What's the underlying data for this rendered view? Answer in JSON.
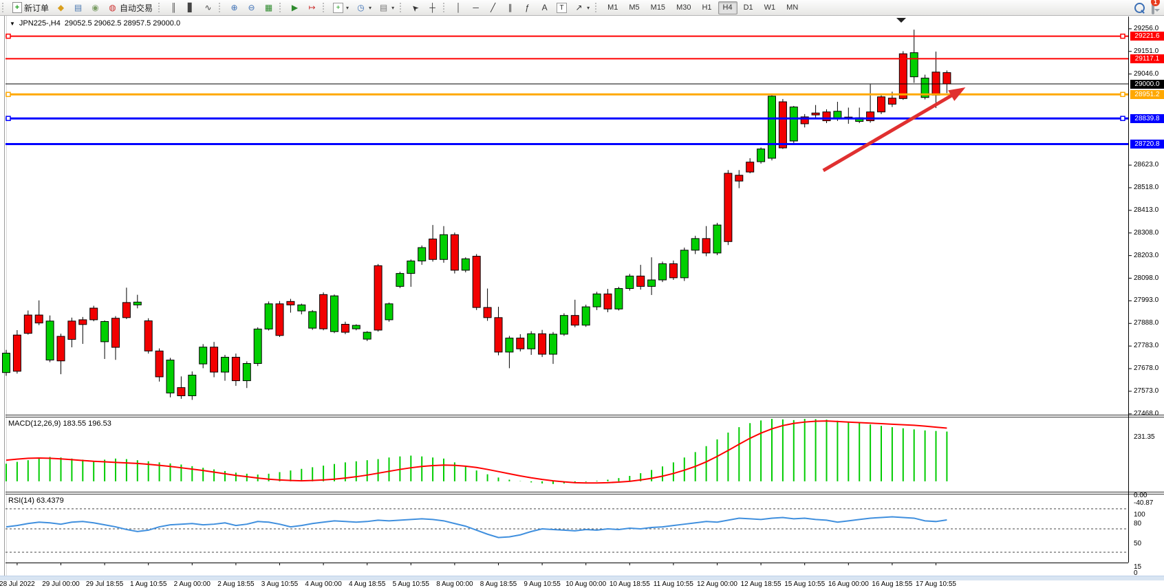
{
  "toolbar": {
    "groups": [
      {
        "items": [
          {
            "name": "new-order-button",
            "icon": {
              "name": "new-order-icon",
              "glyph": "+",
              "fg": "#1a9c1a",
              "style": "docicon"
            },
            "label": "新订单"
          },
          {
            "name": "market-watch-button",
            "icon": {
              "name": "market-watch-icon",
              "glyph": "◆",
              "fg": "#d99f1e"
            }
          },
          {
            "name": "data-window-button",
            "icon": {
              "name": "data-window-icon",
              "glyph": "▤",
              "fg": "#4a78b0"
            }
          },
          {
            "name": "signal-button",
            "icon": {
              "name": "signal-icon",
              "glyph": "◉",
              "fg": "#7d9f68"
            }
          },
          {
            "name": "autotrading-button",
            "icon": {
              "name": "autotrading-icon",
              "glyph": "◍",
              "fg": "#cc3333"
            },
            "label": "自动交易"
          }
        ]
      },
      {
        "items": [
          {
            "name": "bar-chart-button",
            "icon": {
              "name": "bar-chart-icon",
              "glyph": "║",
              "fg": "#444444"
            }
          },
          {
            "name": "candlestick-chart-button",
            "icon": {
              "name": "candlestick-icon",
              "glyph": "▋",
              "fg": "#444444"
            }
          },
          {
            "name": "line-chart-button",
            "icon": {
              "name": "line-chart-icon",
              "glyph": "∿",
              "fg": "#444444"
            }
          }
        ]
      },
      {
        "items": [
          {
            "name": "zoom-in-button",
            "icon": {
              "name": "zoom-in-icon",
              "glyph": "⊕",
              "fg": "#3b6fb5"
            }
          },
          {
            "name": "zoom-out-button",
            "icon": {
              "name": "zoom-out-icon",
              "glyph": "⊖",
              "fg": "#3b6fb5"
            }
          },
          {
            "name": "tile-windows-button",
            "icon": {
              "name": "tile-windows-icon",
              "glyph": "▦",
              "fg": "#2e8b2e"
            }
          }
        ]
      },
      {
        "items": [
          {
            "name": "auto-scroll-button",
            "icon": {
              "name": "auto-scroll-icon",
              "glyph": "▶",
              "fg": "#2e8b2e"
            }
          },
          {
            "name": "chart-shift-button",
            "icon": {
              "name": "chart-shift-icon",
              "glyph": "↦",
              "fg": "#cc3333"
            }
          }
        ]
      },
      {
        "items": [
          {
            "name": "indicators-button",
            "icon": {
              "name": "indicators-icon",
              "glyph": "+",
              "fg": "#1a9c1a",
              "style": "boxed"
            },
            "caret": true
          },
          {
            "name": "periods-button",
            "icon": {
              "name": "periods-icon",
              "glyph": "◷",
              "fg": "#3b6fb5"
            },
            "caret": true
          },
          {
            "name": "templates-button",
            "icon": {
              "name": "templates-icon",
              "glyph": "▤",
              "fg": "#777777"
            },
            "caret": true
          }
        ]
      },
      {
        "items": [
          {
            "name": "cursor-button",
            "icon": {
              "name": "cursor-icon",
              "glyph": "➤",
              "fg": "#333333",
              "style": "rot-nw"
            }
          },
          {
            "name": "crosshair-button",
            "icon": {
              "name": "crosshair-icon",
              "glyph": "┼",
              "fg": "#333333"
            }
          }
        ]
      },
      {
        "items": [
          {
            "name": "vertical-line-button",
            "icon": {
              "name": "vertical-line-icon",
              "glyph": "│",
              "fg": "#333333"
            }
          },
          {
            "name": "horizontal-line-button",
            "icon": {
              "name": "horizontal-line-icon",
              "glyph": "─",
              "fg": "#333333"
            }
          },
          {
            "name": "trendline-button",
            "icon": {
              "name": "trendline-icon",
              "glyph": "╱",
              "fg": "#333333"
            }
          },
          {
            "name": "channel-button",
            "icon": {
              "name": "equidistant-channel-icon",
              "glyph": "∥",
              "fg": "#333333"
            }
          },
          {
            "name": "fibonacci-button",
            "icon": {
              "name": "fibonacci-icon",
              "glyph": "ƒ",
              "fg": "#333333"
            }
          },
          {
            "name": "text-button",
            "icon": {
              "name": "text-icon",
              "glyph": "A",
              "fg": "#333333"
            }
          },
          {
            "name": "text-label-button",
            "icon": {
              "name": "text-label-icon",
              "glyph": "T",
              "fg": "#333333",
              "style": "boxed"
            }
          },
          {
            "name": "arrows-button",
            "icon": {
              "name": "arrows-icon",
              "glyph": "↗",
              "fg": "#333333"
            },
            "caret": true
          }
        ]
      }
    ],
    "timeframes": {
      "items": [
        "M1",
        "M5",
        "M15",
        "M30",
        "H1",
        "H4",
        "D1",
        "W1",
        "MN"
      ],
      "active": "H4"
    },
    "right": {
      "badge": "1"
    }
  },
  "chart_data": {
    "type": "candlestick",
    "symbol_period": "JPN225-,H4",
    "ohlc_line": "29052.5 29062.5 28957.5 29000.0",
    "price_axis": {
      "visible_range": [
        27461,
        29313
      ],
      "ticks": [
        29256.0,
        29151.0,
        29046.0,
        28623.0,
        28518.0,
        28413.0,
        28308.0,
        28203.0,
        28098.0,
        27993.0,
        27888.0,
        27783.0,
        27678.0,
        27573.0,
        27468.0
      ]
    },
    "levels": [
      {
        "price": 29221.6,
        "color": "#ff0000",
        "width": 2,
        "label": "29221.6",
        "anchors": true
      },
      {
        "price": 29117.1,
        "color": "#ff0000",
        "width": 2,
        "label": "29117.1",
        "anchors": false
      },
      {
        "price": 29000.0,
        "color": "#000000",
        "width": 1,
        "label": "29000.0",
        "anchors": false
      },
      {
        "price": 28951.2,
        "color": "#ffa800",
        "width": 3,
        "label": "28951.2",
        "anchors": true
      },
      {
        "price": 28839.8,
        "color": "#0000ff",
        "width": 3,
        "label": "28839.8",
        "anchors": true
      },
      {
        "price": 28720.8,
        "color": "#0000ff",
        "width": 3,
        "label": "28720.8",
        "anchors": false
      }
    ],
    "trend_arrow": {
      "from_bar": 74.7,
      "from_price": 28598,
      "to_bar": 87.7,
      "to_price": 28984,
      "color": "#e03030"
    },
    "colors": {
      "bull": "#00cf00",
      "bear": "#f20000",
      "wick": "#000000",
      "macd_hist": "#00cc00",
      "macd_signal": "#ff0000",
      "rsi_line": "#3f8fde"
    },
    "candles": [
      [
        27660,
        27765,
        27645,
        27750
      ],
      [
        27834,
        27857,
        27655,
        27666
      ],
      [
        27927,
        27948,
        27836,
        27842
      ],
      [
        27927,
        27995,
        27880,
        27890
      ],
      [
        27718,
        27925,
        27708,
        27899
      ],
      [
        27828,
        27840,
        27652,
        27714
      ],
      [
        27899,
        27915,
        27777,
        27814
      ],
      [
        27905,
        27918,
        27793,
        27883
      ],
      [
        27959,
        27970,
        27898,
        27905
      ],
      [
        27803,
        27902,
        27723,
        27897
      ],
      [
        27912,
        27922,
        27719,
        27777
      ],
      [
        27985,
        28054,
        27908,
        27915
      ],
      [
        27974,
        28021,
        27958,
        27987
      ],
      [
        27900,
        27912,
        27748,
        27760
      ],
      [
        27760,
        27772,
        27618,
        27640
      ],
      [
        27565,
        27728,
        27545,
        27718
      ],
      [
        27590,
        27642,
        27538,
        27552
      ],
      [
        27552,
        27665,
        27533,
        27648
      ],
      [
        27700,
        27792,
        27680,
        27778
      ],
      [
        27778,
        27802,
        27638,
        27662
      ],
      [
        27662,
        27742,
        27622,
        27731
      ],
      [
        27731,
        27748,
        27598,
        27622
      ],
      [
        27622,
        27712,
        27588,
        27702
      ],
      [
        27702,
        27870,
        27690,
        27862
      ],
      [
        27862,
        27990,
        27855,
        27979
      ],
      [
        27979,
        27992,
        27825,
        27832
      ],
      [
        27990,
        28002,
        27938,
        27974
      ],
      [
        27946,
        27980,
        27930,
        27974
      ],
      [
        27866,
        27950,
        27858,
        27943
      ],
      [
        28022,
        28032,
        27856,
        27863
      ],
      [
        27850,
        28022,
        27843,
        28016
      ],
      [
        27884,
        27896,
        27838,
        27847
      ],
      [
        27863,
        27884,
        27856,
        27879
      ],
      [
        27815,
        27852,
        27806,
        27847
      ],
      [
        28156,
        28164,
        27850,
        27857
      ],
      [
        27905,
        27985,
        27896,
        27979
      ],
      [
        28060,
        28128,
        28052,
        28120
      ],
      [
        28120,
        28185,
        28058,
        28178
      ],
      [
        28178,
        28250,
        28160,
        28240
      ],
      [
        28280,
        28345,
        28175,
        28185
      ],
      [
        28185,
        28340,
        28170,
        28300
      ],
      [
        28300,
        28310,
        28120,
        28135
      ],
      [
        28135,
        28195,
        28125,
        28188
      ],
      [
        28200,
        28210,
        27950,
        27962
      ],
      [
        27962,
        28050,
        27900,
        27915
      ],
      [
        27915,
        27965,
        27740,
        27755
      ],
      [
        27755,
        27830,
        27680,
        27820
      ],
      [
        27820,
        27838,
        27758,
        27770
      ],
      [
        27770,
        27852,
        27742,
        27840
      ],
      [
        27840,
        27858,
        27732,
        27745
      ],
      [
        27745,
        27848,
        27700,
        27838
      ],
      [
        27838,
        27935,
        27830,
        27925
      ],
      [
        27925,
        27998,
        27870,
        27880
      ],
      [
        27880,
        27975,
        27872,
        27965
      ],
      [
        27965,
        28035,
        27950,
        28025
      ],
      [
        28025,
        28048,
        27940,
        27955
      ],
      [
        27955,
        28058,
        27948,
        28050
      ],
      [
        28050,
        28118,
        28040,
        28108
      ],
      [
        28108,
        28160,
        28045,
        28060
      ],
      [
        28060,
        28195,
        28020,
        28090
      ],
      [
        28090,
        28175,
        28080,
        28165
      ],
      [
        28165,
        28180,
        28090,
        28100
      ],
      [
        28100,
        28240,
        28085,
        28228
      ],
      [
        28228,
        28295,
        28210,
        28282
      ],
      [
        28282,
        28340,
        28200,
        28215
      ],
      [
        28215,
        28355,
        28205,
        28345
      ],
      [
        28585,
        28600,
        28252,
        28268
      ],
      [
        28576,
        28600,
        28516,
        28549
      ],
      [
        28637,
        28655,
        28585,
        28591
      ],
      [
        28639,
        28705,
        28630,
        28698
      ],
      [
        28655,
        28950,
        28645,
        28943
      ],
      [
        28917,
        28930,
        28698,
        28703
      ],
      [
        28735,
        28898,
        28726,
        28893
      ],
      [
        28847,
        28860,
        28798,
        28815
      ],
      [
        28865,
        28902,
        28842,
        28856
      ],
      [
        28870,
        28882,
        28818,
        28829
      ],
      [
        28838,
        28917,
        28828,
        28873
      ],
      [
        28846,
        28890,
        28815,
        28840
      ],
      [
        28826,
        28890,
        28818,
        28843
      ],
      [
        28870,
        28998,
        28820,
        28829
      ],
      [
        28940,
        28954,
        28860,
        28870
      ],
      [
        28934,
        28964,
        28893,
        28906
      ],
      [
        29140,
        29152,
        28926,
        28932
      ],
      [
        29033,
        29252,
        29005,
        29145
      ],
      [
        28937,
        29043,
        28928,
        29027
      ],
      [
        29055,
        29150,
        28888,
        28948
      ],
      [
        29052.5,
        29062.5,
        28957.5,
        29000.0
      ]
    ],
    "indicators": {
      "macd": {
        "label": "MACD(12,26,9) 183.55 196.53",
        "axis": {
          "max_label": "231.35",
          "zero_label": "0.00",
          "min_label": "-40.87",
          "range": [
            -41,
            236
          ]
        },
        "values": [
          65,
          72,
          78,
          85,
          90,
          88,
          84,
          80,
          76,
          80,
          84,
          82,
          78,
          74,
          70,
          66,
          62,
          56,
          50,
          44,
          38,
          32,
          28,
          25,
          28,
          34,
          40,
          46,
          52,
          58,
          64,
          70,
          74,
          78,
          82,
          88,
          92,
          95,
          92,
          88,
          84,
          70,
          55,
          40,
          26,
          14,
          6,
          1,
          -4,
          -8,
          -10,
          -8,
          -5,
          -2,
          2,
          6,
          12,
          20,
          30,
          42,
          55,
          70,
          88,
          108,
          130,
          155,
          180,
          200,
          215,
          225,
          231,
          229,
          226,
          231,
          230,
          228,
          224,
          220,
          216,
          210,
          205,
          200,
          196,
          192,
          188,
          186,
          184
        ],
        "signal": [
          78,
          82,
          85,
          86,
          85,
          83,
          80,
          77,
          74,
          72,
          70,
          68,
          66,
          63,
          59,
          55,
          50,
          45,
          40,
          34,
          28,
          22,
          17,
          12,
          8,
          5,
          3,
          2,
          3,
          5,
          8,
          12,
          17,
          23,
          30,
          37,
          44,
          50,
          55,
          58,
          60,
          59,
          56,
          51,
          44,
          36,
          28,
          20,
          13,
          7,
          2,
          -2,
          -5,
          -6,
          -6,
          -5,
          -3,
          0,
          5,
          11,
          19,
          29,
          41,
          55,
          72,
          92,
          114,
          137,
          159,
          178,
          194,
          206,
          214,
          219,
          222,
          223,
          221,
          219,
          217,
          215,
          213,
          211,
          209,
          207,
          204,
          200,
          196.5
        ]
      },
      "rsi": {
        "label": "RSI(14) 63.4379",
        "levels": [
          80,
          50,
          15
        ],
        "axis_labels": [
          "100",
          "80",
          "50",
          "15",
          "0"
        ],
        "values": [
          53,
          55,
          58,
          60,
          59,
          57,
          60,
          61,
          59,
          56,
          53,
          49,
          46,
          48,
          53,
          56,
          57,
          58,
          56,
          57,
          59,
          55,
          57,
          61,
          60,
          57,
          53,
          55,
          58,
          60,
          62,
          61,
          60,
          61,
          63,
          62,
          63,
          64,
          65,
          64,
          62,
          58,
          54,
          48,
          42,
          37,
          38,
          41,
          46,
          50,
          49,
          48,
          47,
          49,
          48,
          50,
          49,
          51,
          50,
          52,
          53,
          55,
          57,
          59,
          61,
          60,
          63,
          66,
          65,
          64,
          66,
          67,
          65,
          66,
          64,
          63,
          60,
          62,
          64,
          66,
          67,
          68,
          67,
          66,
          62,
          61,
          63.4
        ]
      }
    },
    "time_axis": {
      "first_label_bar": 1,
      "bar_step": 4,
      "labels": [
        "28 Jul 2022",
        "29 Jul 00:00",
        "29 Jul 18:55",
        "1 Aug 10:55",
        "2 Aug 00:00",
        "2 Aug 18:55",
        "3 Aug 10:55",
        "4 Aug 00:00",
        "4 Aug 18:55",
        "5 Aug 10:55",
        "8 Aug 00:00",
        "8 Aug 18:55",
        "9 Aug 10:55",
        "10 Aug 00:00",
        "10 Aug 18:55",
        "11 Aug 10:55",
        "12 Aug 00:00",
        "12 Aug 18:55",
        "15 Aug 10:55",
        "16 Aug 00:00",
        "16 Aug 18:55",
        "17 Aug 10:55"
      ]
    }
  }
}
